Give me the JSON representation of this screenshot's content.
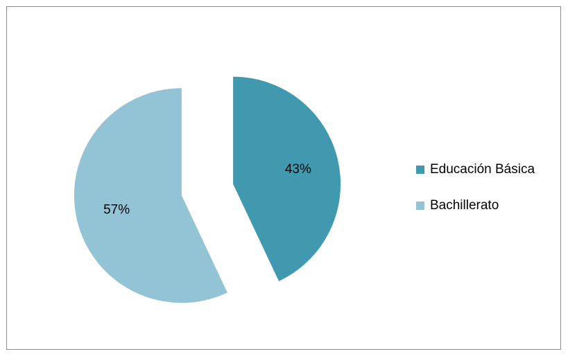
{
  "chart_data": {
    "type": "pie",
    "title": "",
    "categories": [
      "Educación Básica",
      "Bachillerato"
    ],
    "values": [
      43,
      57
    ],
    "data_labels": [
      "43%",
      "57%"
    ],
    "colors": [
      "#4199B0",
      "#93C4D5"
    ],
    "exploded": true,
    "legend_position": "right"
  }
}
